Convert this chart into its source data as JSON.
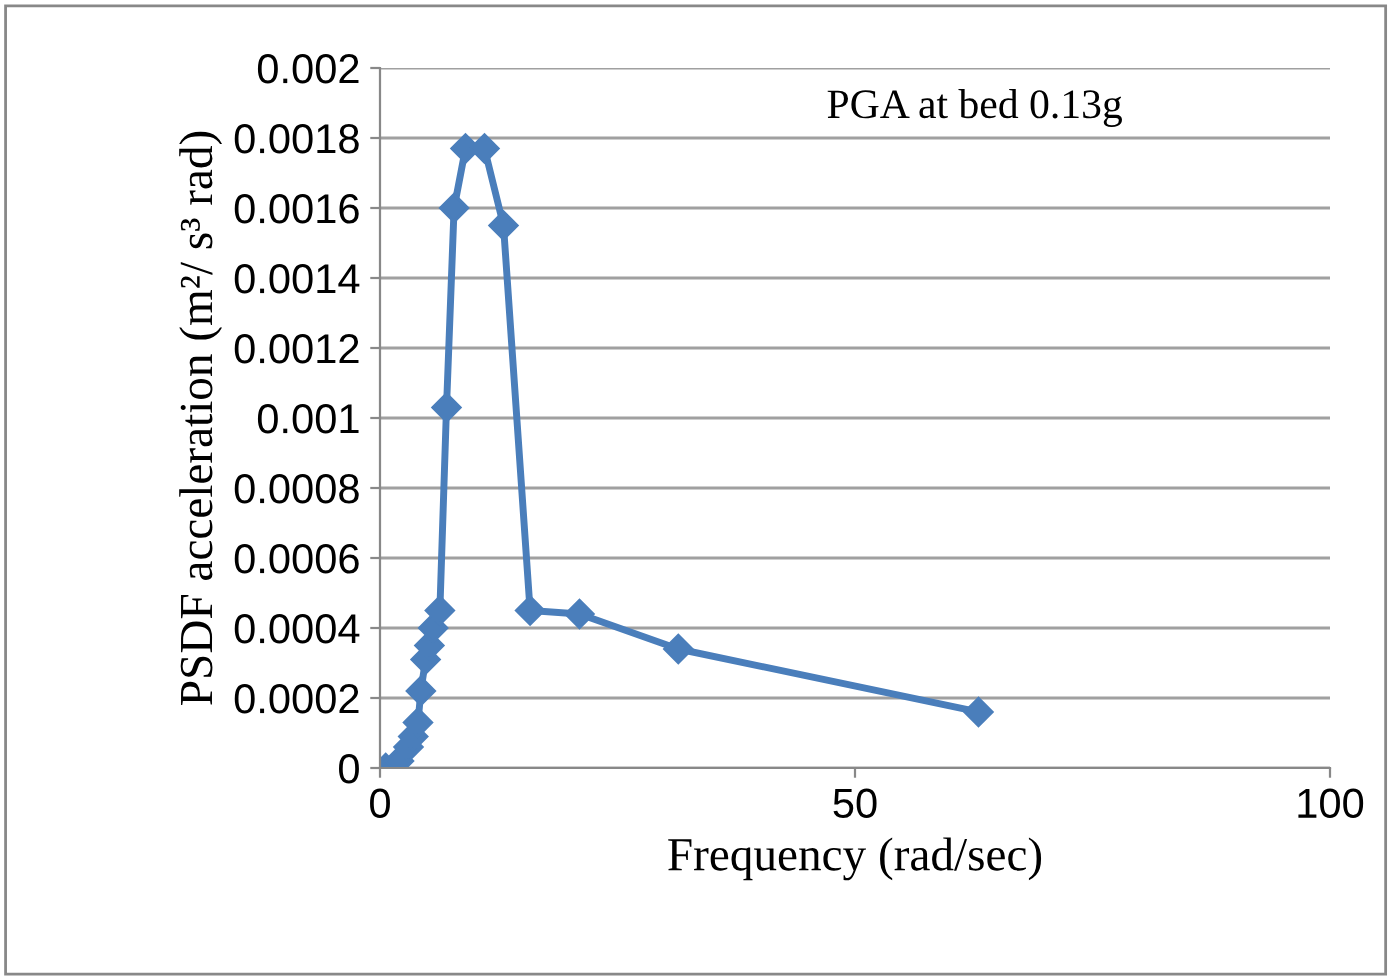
{
  "chart_data": {
    "type": "line",
    "xlabel": "Frequency (rad/sec)",
    "ylabel": "PSDF acceleration (m²/ s³ rad)",
    "annotations": [
      "PGA at bed 0.13g"
    ],
    "series": [
      {
        "color": "#4a7ebb",
        "x": [
          0.6,
          2.0,
          3.0,
          3.5,
          4.0,
          4.3,
          4.8,
          5.2,
          5.6,
          6.3,
          7.0,
          7.8,
          9.0,
          11.0,
          13.0,
          15.8,
          21.0,
          31.4,
          63.0
        ],
        "values": [
          0,
          2e-05,
          6e-05,
          9e-05,
          0.00013,
          0.00022,
          0.00031,
          0.00035,
          0.0004,
          0.00045,
          0.00103,
          0.0016,
          0.00177,
          0.00177,
          0.00155,
          0.00045,
          0.00044,
          0.00034,
          0.00016
        ]
      }
    ],
    "xlim": [
      0,
      100
    ],
    "xticks": [
      0,
      50,
      100
    ],
    "ylim": [
      0,
      0.002
    ],
    "yticks": [
      {
        "value": 0,
        "label": "0"
      },
      0.0002,
      0.0004,
      0.0006,
      0.0008,
      0.001,
      0.0012,
      0.0014,
      0.0016,
      0.0018,
      0.002
    ],
    "grid": "y",
    "marker": "diamond",
    "line_style": "solid"
  }
}
